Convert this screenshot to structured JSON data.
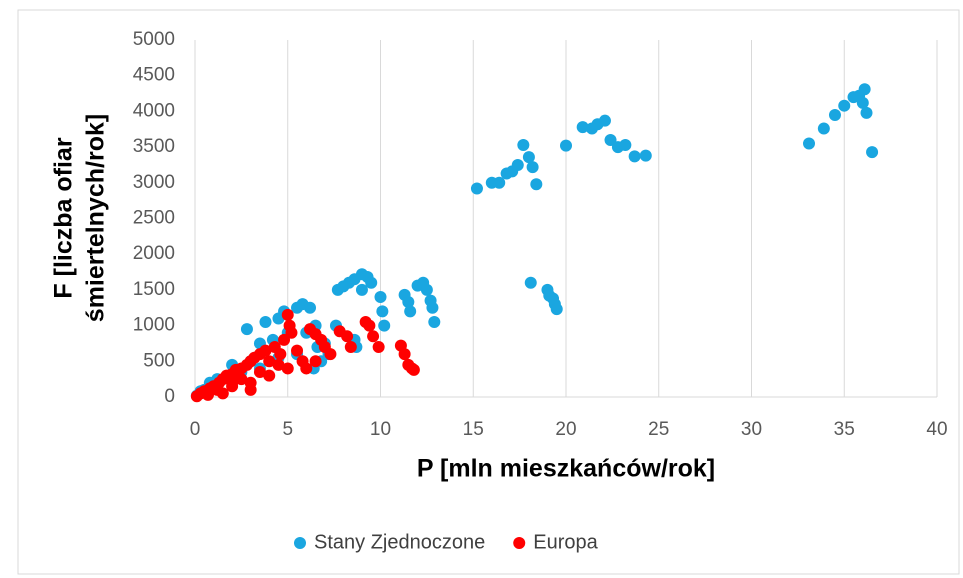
{
  "chart_data": {
    "type": "scatter",
    "x_label": "P [mln mieszkańców/rok]",
    "y_label": [
      "F [liczba ofiar",
      "śmiertelnych/rok]"
    ],
    "xlim": [
      0,
      40
    ],
    "xticks": [
      0,
      5,
      10,
      15,
      20,
      25,
      30,
      35,
      40
    ],
    "ylim": [
      0,
      5000
    ],
    "yticks": [
      0,
      500,
      1000,
      1500,
      2000,
      2500,
      3000,
      3500,
      4000,
      4500,
      5000
    ],
    "grid": "x",
    "legend": "bottom",
    "series": [
      {
        "name": "Stany Zjednoczone",
        "color": "#1aa6e0",
        "x": [
          15.2,
          16,
          16.4,
          16.8,
          17.1,
          17.4,
          17.7,
          18.0,
          18.2,
          18.4,
          20,
          20.9,
          21.4,
          21.7,
          22.1,
          22.4,
          22.8,
          23.2,
          23.7,
          24.3,
          33.1,
          33.9,
          34.5,
          35,
          35.5,
          35.8,
          36,
          36.1,
          36.2,
          36.5,
          18.1,
          19,
          19.1,
          19.3,
          19.4,
          19.5,
          11.3,
          11.5,
          11.6,
          12.0,
          12.3,
          12.5,
          12.7,
          12.8,
          12.9,
          9.0,
          9.3,
          9.5,
          8.6,
          8.3,
          8.0,
          7.7,
          10,
          10.1,
          10.2,
          9.0,
          8.6,
          8.7,
          7.6,
          6.5,
          5.8,
          5.5,
          6.2,
          4.8,
          4.5,
          3.8,
          2.8,
          3.5,
          4.2,
          5.0,
          6.0,
          6.6,
          7.0,
          6.8,
          5.5,
          4.5,
          3,
          2,
          1.8,
          1.2,
          0.8,
          0.5,
          0.3,
          0.1,
          2.5,
          3.5,
          7.2,
          6.4
        ],
        "values": [
          2920,
          3000,
          3000,
          3130,
          3160,
          3250,
          3530,
          3360,
          3220,
          2980,
          3520,
          3780,
          3760,
          3820,
          3870,
          3600,
          3500,
          3530,
          3370,
          3380,
          3550,
          3760,
          3950,
          4080,
          4200,
          4220,
          4120,
          4310,
          3980,
          3430,
          1600,
          1500,
          1420,
          1380,
          1300,
          1230,
          1430,
          1330,
          1200,
          1560,
          1600,
          1500,
          1350,
          1250,
          1050,
          1720,
          1680,
          1600,
          1650,
          1600,
          1550,
          1500,
          1400,
          1200,
          1000,
          1500,
          800,
          700,
          1000,
          1000,
          1300,
          1250,
          1250,
          1200,
          1100,
          1050,
          950,
          750,
          800,
          900,
          900,
          700,
          750,
          500,
          600,
          550,
          500,
          450,
          300,
          250,
          200,
          100,
          80,
          20,
          350,
          400,
          600,
          400
        ]
      },
      {
        "name": "Europa",
        "color": "#ff0000",
        "x": [
          0.1,
          0.3,
          0.5,
          0.8,
          1.0,
          1.3,
          1.5,
          1.7,
          2.0,
          2.2,
          2.5,
          2.8,
          3.0,
          3.2,
          3.5,
          3.8,
          4.0,
          4.3,
          4.6,
          4.8,
          5.0,
          5.1,
          5.2,
          5.5,
          5.8,
          6.0,
          6.2,
          6.5,
          6.8,
          7.0,
          7.3,
          7.8,
          8.2,
          8.4,
          9.2,
          9.4,
          9.6,
          9.9,
          11.1,
          11.3,
          11.5,
          11.7,
          11.8,
          1.2,
          2,
          3,
          4,
          5,
          2.5,
          3.5,
          4.5,
          1.5,
          0.7,
          6.5,
          3,
          2
        ],
        "values": [
          10,
          50,
          80,
          120,
          150,
          200,
          250,
          300,
          320,
          380,
          400,
          450,
          500,
          550,
          600,
          650,
          500,
          700,
          600,
          800,
          1150,
          1000,
          900,
          650,
          500,
          400,
          950,
          880,
          800,
          700,
          600,
          920,
          850,
          700,
          1050,
          1000,
          850,
          700,
          720,
          600,
          450,
          400,
          380,
          100,
          150,
          200,
          300,
          400,
          250,
          350,
          450,
          50,
          30,
          500,
          100,
          200
        ]
      }
    ]
  }
}
